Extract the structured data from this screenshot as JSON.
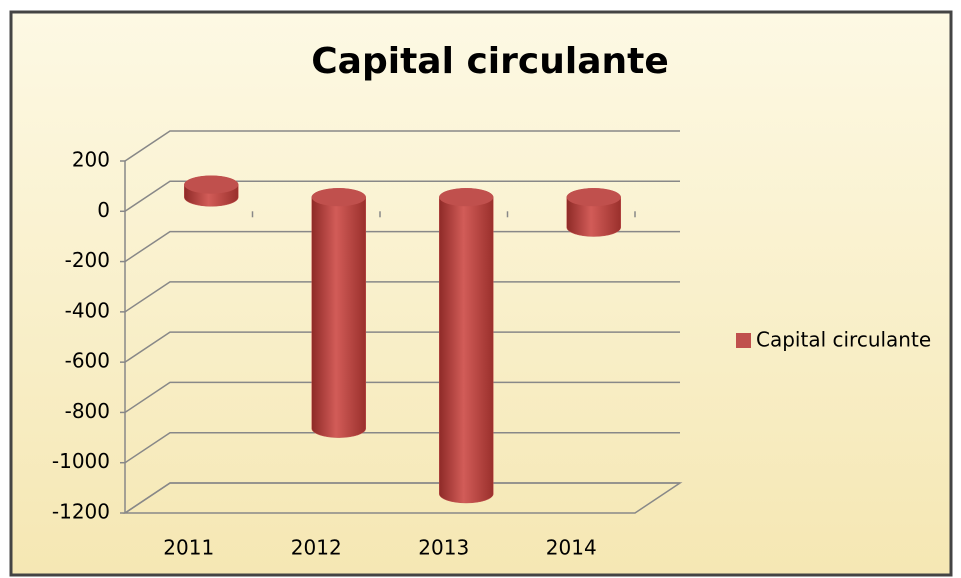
{
  "chart_data": {
    "type": "bar",
    "title": "Capital circulante",
    "categories": [
      "2011",
      "2012",
      "2013",
      "2014"
    ],
    "series": [
      {
        "name": "Capital circulante",
        "color": "#c0504d",
        "values": [
          50,
          -920,
          -1180,
          -120
        ]
      }
    ],
    "ylim": [
      -1200,
      200
    ],
    "yticks": [
      200,
      0,
      -200,
      -400,
      -600,
      -800,
      -1000,
      -1200
    ],
    "grid": true,
    "legend": "right"
  }
}
